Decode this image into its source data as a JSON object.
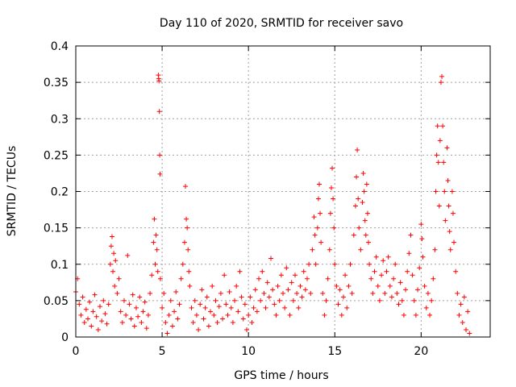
{
  "chart_data": {
    "type": "scatter",
    "title": "Day 110 of 2020, SRMTID for receiver savo",
    "xlabel": "GPS time / hours",
    "ylabel": "SRMTID / TECUs",
    "xlim": [
      0,
      24
    ],
    "ylim": [
      0,
      0.4
    ],
    "x_ticks": [
      0,
      5,
      10,
      15,
      20
    ],
    "x_tick_labels": [
      "0",
      "5",
      "10",
      "15",
      "20"
    ],
    "y_ticks": [
      0,
      0.05,
      0.1,
      0.15,
      0.2,
      0.25,
      0.3,
      0.35,
      0.4
    ],
    "y_tick_labels": [
      "0",
      "0.05",
      "0.1",
      "0.15",
      "0.2",
      "0.25",
      "0.3",
      "0.35",
      "0.4"
    ],
    "grid": true,
    "marker": "+",
    "color": "#ff0000",
    "series": [
      {
        "name": "SRMTID",
        "points": [
          [
            0.0,
            0.062
          ],
          [
            0.1,
            0.08
          ],
          [
            0.2,
            0.045
          ],
          [
            0.3,
            0.03
          ],
          [
            0.4,
            0.055
          ],
          [
            0.5,
            0.02
          ],
          [
            0.6,
            0.038
          ],
          [
            0.7,
            0.025
          ],
          [
            0.8,
            0.048
          ],
          [
            0.9,
            0.015
          ],
          [
            1.0,
            0.035
          ],
          [
            1.1,
            0.058
          ],
          [
            1.2,
            0.028
          ],
          [
            1.3,
            0.01
          ],
          [
            1.4,
            0.042
          ],
          [
            1.5,
            0.022
          ],
          [
            1.6,
            0.05
          ],
          [
            1.7,
            0.032
          ],
          [
            1.8,
            0.018
          ],
          [
            1.9,
            0.045
          ],
          [
            2.0,
            0.1
          ],
          [
            2.05,
            0.125
          ],
          [
            2.1,
            0.138
          ],
          [
            2.15,
            0.09
          ],
          [
            2.2,
            0.115
          ],
          [
            2.25,
            0.07
          ],
          [
            2.3,
            0.105
          ],
          [
            2.4,
            0.06
          ],
          [
            2.5,
            0.08
          ],
          [
            2.6,
            0.035
          ],
          [
            2.7,
            0.02
          ],
          [
            2.8,
            0.05
          ],
          [
            2.9,
            0.03
          ],
          [
            3.0,
            0.112
          ],
          [
            3.1,
            0.045
          ],
          [
            3.2,
            0.025
          ],
          [
            3.3,
            0.058
          ],
          [
            3.4,
            0.015
          ],
          [
            3.5,
            0.04
          ],
          [
            3.6,
            0.028
          ],
          [
            3.7,
            0.055
          ],
          [
            3.8,
            0.02
          ],
          [
            3.9,
            0.035
          ],
          [
            4.0,
            0.048
          ],
          [
            4.1,
            0.012
          ],
          [
            4.2,
            0.03
          ],
          [
            4.3,
            0.06
          ],
          [
            4.4,
            0.085
          ],
          [
            4.5,
            0.13
          ],
          [
            4.55,
            0.162
          ],
          [
            4.6,
            0.1
          ],
          [
            4.65,
            0.14
          ],
          [
            4.7,
            0.12
          ],
          [
            4.75,
            0.09
          ],
          [
            4.78,
            0.36
          ],
          [
            4.8,
            0.355
          ],
          [
            4.82,
            0.352
          ],
          [
            4.84,
            0.31
          ],
          [
            4.86,
            0.25
          ],
          [
            4.88,
            0.224
          ],
          [
            4.9,
            0.08
          ],
          [
            5.0,
            0.04
          ],
          [
            5.1,
            0.06
          ],
          [
            5.2,
            0.02
          ],
          [
            5.3,
            0.005
          ],
          [
            5.4,
            0.03
          ],
          [
            5.5,
            0.05
          ],
          [
            5.6,
            0.015
          ],
          [
            5.7,
            0.035
          ],
          [
            5.8,
            0.062
          ],
          [
            5.9,
            0.025
          ],
          [
            6.0,
            0.045
          ],
          [
            6.1,
            0.08
          ],
          [
            6.2,
            0.1
          ],
          [
            6.3,
            0.13
          ],
          [
            6.35,
            0.207
          ],
          [
            6.4,
            0.162
          ],
          [
            6.45,
            0.15
          ],
          [
            6.5,
            0.12
          ],
          [
            6.55,
            0.09
          ],
          [
            6.6,
            0.07
          ],
          [
            6.7,
            0.04
          ],
          [
            6.8,
            0.02
          ],
          [
            6.9,
            0.05
          ],
          [
            7.0,
            0.03
          ],
          [
            7.1,
            0.01
          ],
          [
            7.2,
            0.045
          ],
          [
            7.3,
            0.065
          ],
          [
            7.4,
            0.025
          ],
          [
            7.5,
            0.04
          ],
          [
            7.6,
            0.055
          ],
          [
            7.7,
            0.015
          ],
          [
            7.8,
            0.035
          ],
          [
            7.9,
            0.07
          ],
          [
            8.0,
            0.03
          ],
          [
            8.1,
            0.05
          ],
          [
            8.2,
            0.02
          ],
          [
            8.3,
            0.042
          ],
          [
            8.4,
            0.06
          ],
          [
            8.5,
            0.025
          ],
          [
            8.6,
            0.085
          ],
          [
            8.7,
            0.045
          ],
          [
            8.8,
            0.03
          ],
          [
            8.9,
            0.062
          ],
          [
            9.0,
            0.04
          ],
          [
            9.1,
            0.02
          ],
          [
            9.2,
            0.05
          ],
          [
            9.3,
            0.07
          ],
          [
            9.4,
            0.035
          ],
          [
            9.5,
            0.09
          ],
          [
            9.6,
            0.055
          ],
          [
            9.7,
            0.025
          ],
          [
            9.8,
            0.045
          ],
          [
            9.9,
            0.01
          ],
          [
            10.0,
            0.03
          ],
          [
            10.1,
            0.055
          ],
          [
            10.2,
            0.02
          ],
          [
            10.3,
            0.04
          ],
          [
            10.4,
            0.065
          ],
          [
            10.5,
            0.035
          ],
          [
            10.6,
            0.08
          ],
          [
            10.7,
            0.05
          ],
          [
            10.8,
            0.09
          ],
          [
            10.9,
            0.06
          ],
          [
            11.0,
            0.04
          ],
          [
            11.1,
            0.075
          ],
          [
            11.2,
            0.055
          ],
          [
            11.3,
            0.108
          ],
          [
            11.4,
            0.065
          ],
          [
            11.5,
            0.045
          ],
          [
            11.6,
            0.03
          ],
          [
            11.7,
            0.07
          ],
          [
            11.8,
            0.05
          ],
          [
            11.9,
            0.085
          ],
          [
            12.0,
            0.06
          ],
          [
            12.1,
            0.04
          ],
          [
            12.2,
            0.095
          ],
          [
            12.3,
            0.065
          ],
          [
            12.4,
            0.03
          ],
          [
            12.5,
            0.075
          ],
          [
            12.6,
            0.05
          ],
          [
            12.7,
            0.085
          ],
          [
            12.8,
            0.06
          ],
          [
            12.9,
            0.04
          ],
          [
            13.0,
            0.07
          ],
          [
            13.1,
            0.055
          ],
          [
            13.2,
            0.09
          ],
          [
            13.3,
            0.065
          ],
          [
            13.4,
            0.08
          ],
          [
            13.5,
            0.1
          ],
          [
            13.6,
            0.06
          ],
          [
            13.7,
            0.12
          ],
          [
            13.8,
            0.165
          ],
          [
            13.85,
            0.14
          ],
          [
            13.9,
            0.1
          ],
          [
            14.0,
            0.15
          ],
          [
            14.05,
            0.19
          ],
          [
            14.1,
            0.21
          ],
          [
            14.15,
            0.17
          ],
          [
            14.2,
            0.13
          ],
          [
            14.3,
            0.06
          ],
          [
            14.4,
            0.03
          ],
          [
            14.5,
            0.05
          ],
          [
            14.6,
            0.08
          ],
          [
            14.7,
            0.12
          ],
          [
            14.75,
            0.17
          ],
          [
            14.8,
            0.205
          ],
          [
            14.85,
            0.232
          ],
          [
            14.9,
            0.19
          ],
          [
            14.95,
            0.15
          ],
          [
            15.0,
            0.1
          ],
          [
            15.1,
            0.07
          ],
          [
            15.2,
            0.045
          ],
          [
            15.3,
            0.065
          ],
          [
            15.4,
            0.03
          ],
          [
            15.5,
            0.055
          ],
          [
            15.6,
            0.085
          ],
          [
            15.7,
            0.04
          ],
          [
            15.8,
            0.07
          ],
          [
            15.9,
            0.1
          ],
          [
            16.0,
            0.06
          ],
          [
            16.1,
            0.14
          ],
          [
            16.2,
            0.18
          ],
          [
            16.25,
            0.22
          ],
          [
            16.3,
            0.257
          ],
          [
            16.35,
            0.19
          ],
          [
            16.4,
            0.15
          ],
          [
            16.5,
            0.12
          ],
          [
            16.6,
            0.185
          ],
          [
            16.65,
            0.225
          ],
          [
            16.7,
            0.2
          ],
          [
            16.75,
            0.16
          ],
          [
            16.8,
            0.14
          ],
          [
            16.85,
            0.21
          ],
          [
            16.9,
            0.17
          ],
          [
            16.95,
            0.13
          ],
          [
            17.0,
            0.1
          ],
          [
            17.1,
            0.08
          ],
          [
            17.2,
            0.06
          ],
          [
            17.3,
            0.09
          ],
          [
            17.4,
            0.11
          ],
          [
            17.5,
            0.07
          ],
          [
            17.6,
            0.05
          ],
          [
            17.7,
            0.085
          ],
          [
            17.8,
            0.105
          ],
          [
            17.9,
            0.06
          ],
          [
            18.0,
            0.09
          ],
          [
            18.1,
            0.11
          ],
          [
            18.2,
            0.07
          ],
          [
            18.3,
            0.055
          ],
          [
            18.4,
            0.08
          ],
          [
            18.5,
            0.1
          ],
          [
            18.6,
            0.06
          ],
          [
            18.7,
            0.045
          ],
          [
            18.8,
            0.075
          ],
          [
            18.9,
            0.05
          ],
          [
            19.0,
            0.03
          ],
          [
            19.1,
            0.065
          ],
          [
            19.2,
            0.09
          ],
          [
            19.3,
            0.115
          ],
          [
            19.4,
            0.14
          ],
          [
            19.5,
            0.085
          ],
          [
            19.6,
            0.05
          ],
          [
            19.7,
            0.03
          ],
          [
            19.8,
            0.065
          ],
          [
            19.9,
            0.095
          ],
          [
            20.0,
            0.155
          ],
          [
            20.05,
            0.135
          ],
          [
            20.1,
            0.11
          ],
          [
            20.2,
            0.07
          ],
          [
            20.3,
            0.04
          ],
          [
            20.4,
            0.06
          ],
          [
            20.5,
            0.03
          ],
          [
            20.6,
            0.05
          ],
          [
            20.7,
            0.08
          ],
          [
            20.8,
            0.12
          ],
          [
            20.85,
            0.2
          ],
          [
            20.9,
            0.25
          ],
          [
            20.95,
            0.29
          ],
          [
            21.0,
            0.24
          ],
          [
            21.05,
            0.18
          ],
          [
            21.1,
            0.27
          ],
          [
            21.15,
            0.35
          ],
          [
            21.2,
            0.358
          ],
          [
            21.25,
            0.29
          ],
          [
            21.3,
            0.24
          ],
          [
            21.35,
            0.2
          ],
          [
            21.4,
            0.16
          ],
          [
            21.5,
            0.26
          ],
          [
            21.55,
            0.215
          ],
          [
            21.6,
            0.18
          ],
          [
            21.65,
            0.145
          ],
          [
            21.7,
            0.12
          ],
          [
            21.8,
            0.2
          ],
          [
            21.85,
            0.17
          ],
          [
            21.9,
            0.13
          ],
          [
            22.0,
            0.09
          ],
          [
            22.1,
            0.06
          ],
          [
            22.2,
            0.03
          ],
          [
            22.3,
            0.045
          ],
          [
            22.4,
            0.02
          ],
          [
            22.5,
            0.055
          ],
          [
            22.6,
            0.01
          ],
          [
            22.7,
            0.035
          ],
          [
            22.8,
            0.005
          ]
        ]
      }
    ]
  }
}
